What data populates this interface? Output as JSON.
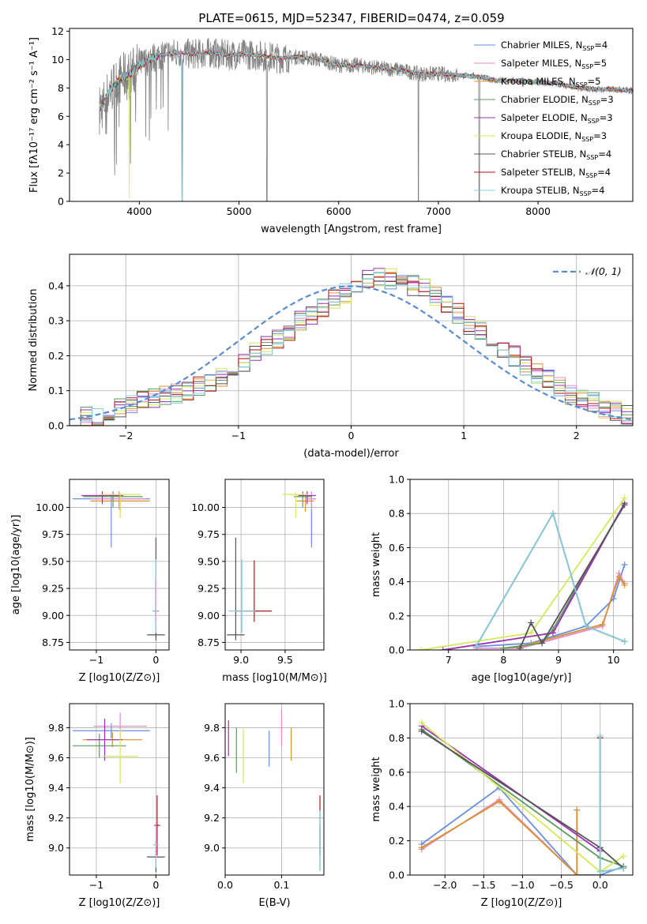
{
  "figure_title": "PLATE=0615, MJD=52347, FIBERID=0474, z=0.059",
  "colors": {
    "Chabrier MILES": "#6a8ee0",
    "Salpeter MILES": "#e58bc8",
    "Kroupa MILES": "#d9932e",
    "Chabrier ELODIE": "#5f9a5f",
    "Salpeter ELODIE": "#9b2fb6",
    "Kroupa ELODIE": "#d4e85a",
    "Chabrier STELIB": "#555555",
    "Salpeter STELIB": "#b1141b",
    "Kroupa STELIB": "#80d0e0",
    "data": "#808080",
    "normal": "#5b8bd0",
    "grid": "#b0b0b0"
  },
  "chart_data": [
    {
      "type": "line",
      "title": "PLATE=0615, MJD=52347, FIBERID=0474, z=0.059",
      "xlabel": "wavelength [Angstrom, rest frame]",
      "ylabel": "Flux [fλ10⁻¹⁷ erg cm⁻² s⁻¹ A⁻¹]",
      "xlim": [
        3300,
        8950
      ],
      "ylim": [
        0,
        12.2
      ],
      "xticks": [
        4000,
        5000,
        6000,
        7000,
        8000
      ],
      "yticks": [
        0,
        2,
        4,
        6,
        8,
        10,
        12
      ],
      "grid": false,
      "legend_position": "upper right",
      "legend": [
        {
          "label": "Chabrier MILES, N",
          "sub": "SSP",
          "tail": "=4"
        },
        {
          "label": "Salpeter MILES, N",
          "sub": "SSP",
          "tail": "=5"
        },
        {
          "label": "Kroupa MILES, N",
          "sub": "SSP",
          "tail": "=5"
        },
        {
          "label": "Chabrier ELODIE, N",
          "sub": "SSP",
          "tail": "=3"
        },
        {
          "label": "Salpeter ELODIE, N",
          "sub": "SSP",
          "tail": "=3"
        },
        {
          "label": "Kroupa ELODIE, N",
          "sub": "SSP",
          "tail": "=3"
        },
        {
          "label": "Chabrier STELIB, N",
          "sub": "SSP",
          "tail": "=4"
        },
        {
          "label": "Salpeter STELIB, N",
          "sub": "SSP",
          "tail": "=4"
        },
        {
          "label": "Kroupa STELIB, N",
          "sub": "SSP",
          "tail": "=4"
        }
      ],
      "series_note": "observed spectrum (grey, noisy) and nine SSP model fits overlap",
      "spectrum": {
        "x": [
          3600,
          3650,
          3700,
          3750,
          3800,
          3850,
          3900,
          3950,
          4000,
          4100,
          4200,
          4300,
          4400,
          4500,
          4600,
          4700,
          4800,
          4900,
          5000,
          5200,
          5400,
          5600,
          5800,
          6000,
          6200,
          6400,
          6600,
          6800,
          7000,
          7200,
          7400,
          7600,
          7800,
          8000,
          8200,
          8400,
          8600,
          8800,
          8950
        ],
        "y": [
          6.5,
          7.0,
          7.8,
          8.2,
          8.6,
          8.8,
          8.9,
          9.2,
          9.6,
          10.0,
          10.3,
          10.4,
          10.5,
          10.4,
          10.4,
          10.5,
          10.4,
          10.3,
          10.4,
          10.3,
          10.1,
          10.2,
          10.0,
          9.6,
          9.6,
          9.4,
          9.3,
          9.0,
          9.0,
          8.9,
          8.8,
          8.5,
          8.5,
          8.4,
          8.3,
          8.0,
          7.9,
          7.9,
          7.8
        ]
      },
      "absorption_dips": [
        {
          "x": 4430,
          "y": 0
        },
        {
          "x": 5280,
          "y": 0
        },
        {
          "x": 6800,
          "y": 0
        },
        {
          "x": 7410,
          "y": 0
        }
      ]
    },
    {
      "type": "step",
      "xlabel": "(data-model)/error",
      "ylabel": "Normed distribution",
      "xlim": [
        -2.5,
        2.5
      ],
      "ylim": [
        0,
        0.49
      ],
      "xticks": [
        -2,
        -1,
        0,
        1,
        2
      ],
      "yticks": [
        0.0,
        0.1,
        0.2,
        0.3,
        0.4
      ],
      "grid": true,
      "legend_position": "upper right",
      "legend_label": "𝒩(0, 1)",
      "bin_width": 0.1,
      "bin_start": -2.5,
      "histogram_mean": [
        0.03,
        0.03,
        0.02,
        0.04,
        0.05,
        0.06,
        0.07,
        0.08,
        0.09,
        0.09,
        0.1,
        0.11,
        0.12,
        0.14,
        0.16,
        0.18,
        0.21,
        0.23,
        0.25,
        0.27,
        0.3,
        0.32,
        0.34,
        0.36,
        0.38,
        0.4,
        0.42,
        0.43,
        0.42,
        0.41,
        0.4,
        0.39,
        0.37,
        0.35,
        0.32,
        0.29,
        0.27,
        0.24,
        0.22,
        0.2,
        0.17,
        0.15,
        0.13,
        0.11,
        0.09,
        0.08,
        0.07,
        0.05,
        0.04,
        0.03
      ]
    },
    {
      "type": "errorbar",
      "xlabel": "Z [log10(Z/Z⊙)]",
      "ylabel": "age  [log10(age/yr)]",
      "xlim": [
        -1.45,
        0.22
      ],
      "ylim": [
        8.68,
        10.26
      ],
      "xticks": [
        -1,
        0
      ],
      "yticks": [
        8.75,
        9.0,
        9.25,
        9.5,
        9.75,
        10.0
      ],
      "grid": true,
      "points": [
        {
          "model": "Chabrier MILES",
          "x": -0.75,
          "y": 10.08,
          "xerr": 0.65,
          "yerr": [
            0.45,
            0.04
          ]
        },
        {
          "model": "Salpeter MILES",
          "x": -0.62,
          "y": 10.08,
          "xerr": 0.45,
          "yerr": [
            0.1,
            0.07
          ]
        },
        {
          "model": "Kroupa MILES",
          "x": -0.6,
          "y": 10.06,
          "xerr": 0.5,
          "yerr": [
            0.1,
            0.05
          ]
        },
        {
          "model": "Chabrier ELODIE",
          "x": -0.72,
          "y": 10.1,
          "xerr": 0.5,
          "yerr": [
            0.1,
            0.05
          ]
        },
        {
          "model": "Salpeter ELODIE",
          "x": -0.9,
          "y": 10.11,
          "xerr": 0.35,
          "yerr": [
            0.08,
            0.04
          ]
        },
        {
          "model": "Kroupa ELODIE",
          "x": -0.6,
          "y": 10.12,
          "xerr": 0.35,
          "yerr": [
            0.22,
            0.02
          ]
        },
        {
          "model": "Chabrier STELIB",
          "x": 0.0,
          "y": 8.82,
          "xerr": 0.15,
          "yerr": [
            0.05,
            0.9
          ]
        },
        {
          "model": "Salpeter STELIB",
          "x": 0.0,
          "y": 9.04,
          "xerr": 0.05,
          "yerr": [
            0.1,
            0.3
          ]
        },
        {
          "model": "Kroupa STELIB",
          "x": 0.0,
          "y": 9.04,
          "xerr": 0.05,
          "yerr": [
            0.2,
            0.48
          ]
        }
      ]
    },
    {
      "type": "errorbar",
      "xlabel": "mass [log10(M/M⊙)]",
      "ylabel": "",
      "xlim": [
        8.82,
        9.94
      ],
      "ylim": [
        8.68,
        10.26
      ],
      "xticks": [
        9.0,
        9.5
      ],
      "yticks": [
        8.75,
        9.0,
        9.25,
        9.5,
        9.75,
        10.0
      ],
      "grid": true,
      "points": [
        {
          "model": "Chabrier MILES",
          "x": 9.8,
          "y": 10.08,
          "xerr": 0.05,
          "yerr": [
            0.45,
            0.04
          ]
        },
        {
          "model": "Salpeter MILES",
          "x": 9.8,
          "y": 10.08,
          "xerr": 0.05,
          "yerr": [
            0.1,
            0.07
          ]
        },
        {
          "model": "Kroupa MILES",
          "x": 9.73,
          "y": 10.06,
          "xerr": 0.1,
          "yerr": [
            0.1,
            0.05
          ]
        },
        {
          "model": "Chabrier ELODIE",
          "x": 9.7,
          "y": 10.1,
          "xerr": 0.1,
          "yerr": [
            0.1,
            0.05
          ]
        },
        {
          "model": "Salpeter ELODIE",
          "x": 9.75,
          "y": 10.11,
          "xerr": 0.1,
          "yerr": [
            0.08,
            0.04
          ]
        },
        {
          "model": "Kroupa ELODIE",
          "x": 9.62,
          "y": 10.12,
          "xerr": 0.15,
          "yerr": [
            0.22,
            0.02
          ]
        },
        {
          "model": "Chabrier STELIB",
          "x": 8.94,
          "y": 8.82,
          "xerr": 0.1,
          "yerr": [
            0.05,
            0.9
          ]
        },
        {
          "model": "Salpeter STELIB",
          "x": 9.15,
          "y": 9.04,
          "xerr": 0.2,
          "yerr": [
            0.1,
            0.47
          ]
        },
        {
          "model": "Kroupa STELIB",
          "x": 9.01,
          "y": 9.04,
          "xerr": 0.15,
          "yerr": [
            0.2,
            0.48
          ]
        }
      ]
    },
    {
      "type": "line",
      "xlabel": "age  [log10(age/yr)]",
      "ylabel": "mass weight",
      "xlim": [
        6.3,
        10.35
      ],
      "ylim": [
        0,
        1.0
      ],
      "xticks": [
        7,
        8,
        9,
        10
      ],
      "yticks": [
        0.0,
        0.2,
        0.4,
        0.6,
        0.8,
        1.0
      ],
      "grid": true,
      "series": [
        {
          "model": "Chabrier MILES",
          "x": [
            7.5,
            8.5,
            9.5,
            10.0,
            10.2
          ],
          "y": [
            0.02,
            0.04,
            0.14,
            0.3,
            0.5
          ]
        },
        {
          "model": "Salpeter MILES",
          "x": [
            7.5,
            8.3,
            9.8,
            10.1,
            10.2
          ],
          "y": [
            0.01,
            0.01,
            0.14,
            0.45,
            0.39
          ]
        },
        {
          "model": "Kroupa MILES",
          "x": [
            8.0,
            8.3,
            9.8,
            10.1,
            10.2
          ],
          "y": [
            0.01,
            0.02,
            0.15,
            0.43,
            0.38
          ]
        },
        {
          "model": "Chabrier ELODIE",
          "x": [
            8.0,
            8.7,
            8.9,
            10.2
          ],
          "y": [
            0.01,
            0.04,
            0.12,
            0.86
          ]
        },
        {
          "model": "Salpeter ELODIE",
          "x": [
            6.9,
            8.9,
            10.2
          ],
          "y": [
            0.0,
            0.1,
            0.86
          ]
        },
        {
          "model": "Kroupa ELODIE",
          "x": [
            6.5,
            8.5,
            10.2
          ],
          "y": [
            0.0,
            0.1,
            0.89
          ]
        },
        {
          "model": "Chabrier STELIB",
          "x": [
            8.3,
            8.5,
            8.7,
            10.2
          ],
          "y": [
            0.01,
            0.16,
            0.04,
            0.85
          ]
        },
        {
          "model": "Salpeter STELIB",
          "x": [
            7.5,
            8.9,
            9.5,
            10.2
          ],
          "y": [
            0.02,
            0.8,
            0.14,
            0.05
          ]
        },
        {
          "model": "Kroupa STELIB",
          "x": [
            7.5,
            8.9,
            9.5,
            10.2
          ],
          "y": [
            0.02,
            0.8,
            0.14,
            0.05
          ]
        }
      ]
    },
    {
      "type": "errorbar",
      "xlabel": "Z [log10(Z/Z⊙)]",
      "ylabel": "mass [log10(M/M⊙)]",
      "xlim": [
        -1.45,
        0.22
      ],
      "ylim": [
        8.82,
        9.96
      ],
      "xticks": [
        -1,
        0
      ],
      "yticks": [
        9.0,
        9.2,
        9.4,
        9.6,
        9.8
      ],
      "grid": true,
      "points": [
        {
          "model": "Chabrier MILES",
          "x": -0.75,
          "y": 9.78,
          "xerr": 0.65,
          "yerr": 0.05
        },
        {
          "model": "Salpeter MILES",
          "x": -0.6,
          "y": 9.81,
          "xerr": 0.45,
          "yerr": 0.09
        },
        {
          "model": "Kroupa MILES",
          "x": -0.73,
          "y": 9.72,
          "xerr": 0.5,
          "yerr": 0.05
        },
        {
          "model": "Chabrier ELODIE",
          "x": -0.95,
          "y": 9.68,
          "xerr": 0.45,
          "yerr": 0.08
        },
        {
          "model": "Salpeter ELODIE",
          "x": -0.86,
          "y": 9.72,
          "xerr": 0.3,
          "yerr": 0.14
        },
        {
          "model": "Kroupa ELODIE",
          "x": -0.6,
          "y": 9.61,
          "xerr": 0.3,
          "yerr": 0.18
        },
        {
          "model": "Chabrier STELIB",
          "x": 0.0,
          "y": 8.94,
          "xerr": 0.15,
          "yerr": 0.1
        },
        {
          "model": "Salpeter STELIB",
          "x": 0.02,
          "y": 9.15,
          "xerr": 0.05,
          "yerr": 0.2
        },
        {
          "model": "Kroupa STELIB",
          "x": 0.0,
          "y": 9.02,
          "xerr": 0.05,
          "yerr": 0.15
        }
      ]
    },
    {
      "type": "errorbar",
      "xlabel": "E(B-V)",
      "ylabel": "",
      "xlim": [
        0.0,
        0.175
      ],
      "ylim": [
        8.82,
        9.96
      ],
      "xticks": [
        0.0,
        0.1
      ],
      "yticks": [
        9.0,
        9.2,
        9.4,
        9.6,
        9.8
      ],
      "grid": true,
      "points": [
        {
          "model": "Chabrier MILES",
          "x": 0.078,
          "y": 9.66,
          "yerr": 0.12
        },
        {
          "model": "Salpeter MILES",
          "x": 0.1,
          "y": 9.8,
          "yerr": 0.12
        },
        {
          "model": "Kroupa MILES",
          "x": 0.117,
          "y": 9.69,
          "yerr": 0.11
        },
        {
          "model": "Chabrier ELODIE",
          "x": 0.02,
          "y": 9.65,
          "yerr": 0.15
        },
        {
          "model": "Salpeter ELODIE",
          "x": 0.006,
          "y": 9.73,
          "yerr": 0.12
        },
        {
          "model": "Kroupa ELODIE",
          "x": 0.032,
          "y": 9.61,
          "yerr": 0.18
        },
        {
          "model": "Chabrier STELIB",
          "x": 0.168,
          "y": 9.0,
          "yerr": 0.15
        },
        {
          "model": "Salpeter STELIB",
          "x": 0.168,
          "y": 9.15,
          "yerr": 0.2
        },
        {
          "model": "Kroupa STELIB",
          "x": 0.168,
          "y": 9.05,
          "yerr": 0.2
        }
      ]
    },
    {
      "type": "line",
      "xlabel": "Z [log10(Z/Z⊙)]",
      "ylabel": "mass weight",
      "xlim": [
        -2.45,
        0.42
      ],
      "ylim": [
        0,
        1.0
      ],
      "xticks": [
        -2.0,
        -1.5,
        -1.0,
        -0.5,
        0.0
      ],
      "yticks": [
        0.0,
        0.2,
        0.4,
        0.6,
        0.8,
        1.0
      ],
      "grid": true,
      "series": [
        {
          "model": "Chabrier MILES",
          "x": [
            -2.3,
            -1.3,
            -0.3,
            0.0,
            0.3
          ],
          "y": [
            0.18,
            0.51,
            0.0,
            0.0,
            0.05
          ]
        },
        {
          "model": "Salpeter MILES",
          "x": [
            -2.3,
            -1.3,
            -0.3,
            -0.3
          ],
          "y": [
            0.15,
            0.44,
            0.0,
            0.38
          ]
        },
        {
          "model": "Kroupa MILES",
          "x": [
            -2.3,
            -1.3,
            -0.3,
            -0.3
          ],
          "y": [
            0.16,
            0.43,
            0.0,
            0.38
          ]
        },
        {
          "model": "Chabrier ELODIE",
          "x": [
            -2.3,
            0.0,
            0.3
          ],
          "y": [
            0.85,
            0.1,
            0.05
          ]
        },
        {
          "model": "Salpeter ELODIE",
          "x": [
            -2.3,
            0.0
          ],
          "y": [
            0.87,
            0.14
          ]
        },
        {
          "model": "Kroupa ELODIE",
          "x": [
            -2.3,
            0.0,
            0.3
          ],
          "y": [
            0.89,
            0.02,
            0.11
          ]
        },
        {
          "model": "Chabrier STELIB",
          "x": [
            -2.3,
            0.0,
            0.3
          ],
          "y": [
            0.84,
            0.16,
            0.04
          ]
        },
        {
          "model": "Salpeter STELIB",
          "x": [
            0.0,
            0.0,
            0.3
          ],
          "y": [
            0.8,
            0.02,
            0.04
          ]
        },
        {
          "model": "Kroupa STELIB",
          "x": [
            0.0,
            0.0,
            0.3
          ],
          "y": [
            0.81,
            0.02,
            0.04
          ]
        }
      ]
    }
  ]
}
